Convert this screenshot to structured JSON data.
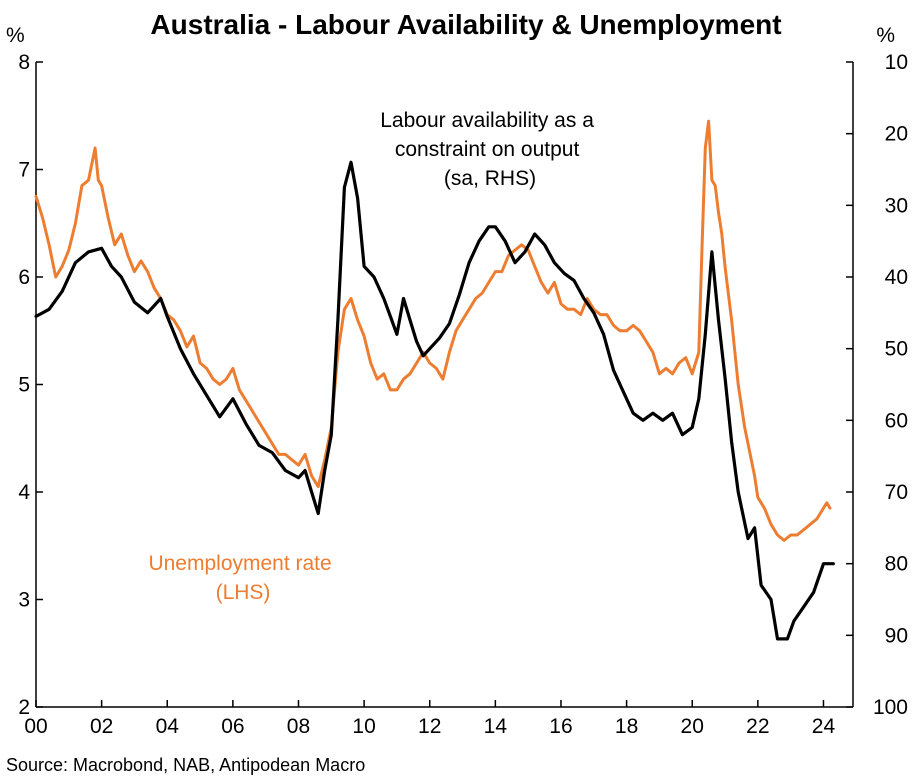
{
  "chart_data": {
    "type": "line",
    "title": "Australia - Labour Availability & Unemployment",
    "left_unit": "%",
    "right_unit": "%",
    "source": "Source: Macrobond, NAB, Antipodean Macro",
    "x_ticks": [
      "00",
      "02",
      "04",
      "06",
      "08",
      "10",
      "12",
      "14",
      "16",
      "18",
      "20",
      "22",
      "24"
    ],
    "x_range": [
      2000,
      2024.9
    ],
    "y_left": {
      "range": [
        2,
        8
      ],
      "ticks": [
        "2",
        "3",
        "4",
        "5",
        "6",
        "7",
        "8"
      ]
    },
    "y_right": {
      "range": [
        100,
        10
      ],
      "inverted": true,
      "ticks": [
        "100",
        "90",
        "80",
        "70",
        "60",
        "50",
        "40",
        "30",
        "20",
        "10"
      ]
    },
    "grid": false,
    "series": [
      {
        "name": "Unemployment rate (LHS)",
        "label_lines": [
          "Unemployment rate",
          "(LHS)"
        ],
        "axis": "left",
        "color": "#ED7D31",
        "x": [
          2000.0,
          2000.2,
          2000.4,
          2000.6,
          2000.8,
          2001.0,
          2001.2,
          2001.4,
          2001.6,
          2001.8,
          2001.9,
          2002.0,
          2002.2,
          2002.4,
          2002.6,
          2002.8,
          2003.0,
          2003.2,
          2003.4,
          2003.6,
          2003.8,
          2004.0,
          2004.2,
          2004.4,
          2004.6,
          2004.8,
          2005.0,
          2005.2,
          2005.4,
          2005.6,
          2005.8,
          2006.0,
          2006.2,
          2006.4,
          2006.6,
          2006.8,
          2007.0,
          2007.2,
          2007.4,
          2007.6,
          2007.8,
          2008.0,
          2008.2,
          2008.4,
          2008.6,
          2008.8,
          2009.0,
          2009.2,
          2009.4,
          2009.6,
          2009.8,
          2010.0,
          2010.2,
          2010.4,
          2010.6,
          2010.8,
          2011.0,
          2011.2,
          2011.4,
          2011.6,
          2011.8,
          2012.0,
          2012.2,
          2012.4,
          2012.6,
          2012.8,
          2013.0,
          2013.2,
          2013.4,
          2013.6,
          2013.8,
          2014.0,
          2014.2,
          2014.4,
          2014.6,
          2014.8,
          2015.0,
          2015.2,
          2015.4,
          2015.6,
          2015.8,
          2016.0,
          2016.2,
          2016.4,
          2016.6,
          2016.8,
          2017.0,
          2017.2,
          2017.4,
          2017.6,
          2017.8,
          2018.0,
          2018.2,
          2018.4,
          2018.6,
          2018.8,
          2019.0,
          2019.2,
          2019.4,
          2019.6,
          2019.8,
          2020.0,
          2020.2,
          2020.3,
          2020.4,
          2020.5,
          2020.6,
          2020.7,
          2020.8,
          2020.9,
          2021.0,
          2021.2,
          2021.4,
          2021.6,
          2021.8,
          2021.9,
          2022.0,
          2022.2,
          2022.4,
          2022.6,
          2022.8,
          2023.0,
          2023.2,
          2023.4,
          2023.6,
          2023.8,
          2024.0,
          2024.1,
          2024.2
        ],
        "values": [
          6.75,
          6.55,
          6.3,
          6.0,
          6.1,
          6.25,
          6.5,
          6.85,
          6.9,
          7.2,
          6.9,
          6.85,
          6.55,
          6.3,
          6.4,
          6.2,
          6.05,
          6.15,
          6.05,
          5.9,
          5.8,
          5.65,
          5.6,
          5.5,
          5.35,
          5.45,
          5.2,
          5.15,
          5.05,
          5.0,
          5.05,
          5.15,
          4.95,
          4.85,
          4.75,
          4.65,
          4.55,
          4.45,
          4.35,
          4.35,
          4.3,
          4.25,
          4.35,
          4.15,
          4.05,
          4.3,
          4.6,
          5.3,
          5.7,
          5.8,
          5.6,
          5.45,
          5.2,
          5.05,
          5.1,
          4.95,
          4.95,
          5.05,
          5.1,
          5.2,
          5.3,
          5.2,
          5.15,
          5.05,
          5.3,
          5.5,
          5.6,
          5.7,
          5.8,
          5.85,
          5.95,
          6.05,
          6.05,
          6.2,
          6.25,
          6.3,
          6.25,
          6.1,
          5.95,
          5.85,
          5.95,
          5.75,
          5.7,
          5.7,
          5.65,
          5.8,
          5.7,
          5.65,
          5.65,
          5.55,
          5.5,
          5.5,
          5.55,
          5.5,
          5.4,
          5.3,
          5.1,
          5.15,
          5.1,
          5.2,
          5.25,
          5.1,
          5.3,
          6.3,
          7.2,
          7.45,
          6.9,
          6.85,
          6.6,
          6.4,
          6.1,
          5.6,
          5.0,
          4.6,
          4.3,
          4.15,
          3.95,
          3.85,
          3.7,
          3.6,
          3.55,
          3.6,
          3.6,
          3.65,
          3.7,
          3.75,
          3.85,
          3.9,
          3.85
        ]
      },
      {
        "name": "Labour availability as a constraint on output (sa, RHS)",
        "label_lines": [
          "Labour availability as a",
          "constraint on output",
          "(sa, RHS)"
        ],
        "axis": "right",
        "color": "#000000",
        "x": [
          2000.0,
          2000.4,
          2000.8,
          2001.2,
          2001.6,
          2002.0,
          2002.3,
          2002.6,
          2003.0,
          2003.4,
          2003.8,
          2004.0,
          2004.4,
          2004.8,
          2005.2,
          2005.6,
          2006.0,
          2006.4,
          2006.8,
          2007.2,
          2007.6,
          2008.0,
          2008.2,
          2008.4,
          2008.6,
          2008.8,
          2009.0,
          2009.2,
          2009.4,
          2009.6,
          2009.8,
          2010.0,
          2010.3,
          2010.6,
          2010.8,
          2011.0,
          2011.2,
          2011.4,
          2011.6,
          2011.8,
          2012.0,
          2012.3,
          2012.6,
          2012.9,
          2013.2,
          2013.5,
          2013.8,
          2014.0,
          2014.3,
          2014.6,
          2014.9,
          2015.2,
          2015.5,
          2015.8,
          2016.1,
          2016.4,
          2016.7,
          2017.0,
          2017.3,
          2017.6,
          2017.9,
          2018.2,
          2018.5,
          2018.8,
          2019.1,
          2019.4,
          2019.7,
          2020.0,
          2020.2,
          2020.4,
          2020.6,
          2020.8,
          2021.0,
          2021.2,
          2021.4,
          2021.7,
          2021.9,
          2022.1,
          2022.4,
          2022.6,
          2022.9,
          2023.1,
          2023.4,
          2023.7,
          2024.0,
          2024.3
        ],
        "values": [
          45.5,
          44.5,
          42.0,
          38.0,
          36.5,
          36.0,
          38.5,
          40.0,
          43.5,
          45.0,
          43.0,
          45.5,
          50.0,
          53.5,
          56.5,
          59.5,
          57.0,
          60.5,
          63.5,
          64.5,
          67.0,
          68.0,
          67.0,
          70.0,
          73.0,
          67.0,
          62.0,
          46.0,
          27.5,
          24.0,
          29.0,
          38.5,
          40.0,
          43.0,
          45.5,
          48.0,
          43.0,
          46.0,
          49.0,
          51.0,
          50.0,
          48.5,
          46.5,
          42.5,
          38.0,
          35.0,
          33.0,
          33.0,
          35.0,
          38.0,
          36.5,
          34.0,
          35.5,
          38.0,
          39.5,
          40.5,
          43.0,
          45.0,
          48.0,
          53.0,
          56.0,
          59.0,
          60.0,
          59.0,
          60.0,
          59.0,
          62.0,
          61.0,
          57.0,
          48.0,
          36.5,
          46.0,
          54.0,
          63.0,
          70.0,
          76.5,
          75.0,
          83.0,
          85.0,
          90.5,
          90.5,
          88.0,
          86.0,
          84.0,
          80.0,
          80.0
        ]
      }
    ]
  }
}
